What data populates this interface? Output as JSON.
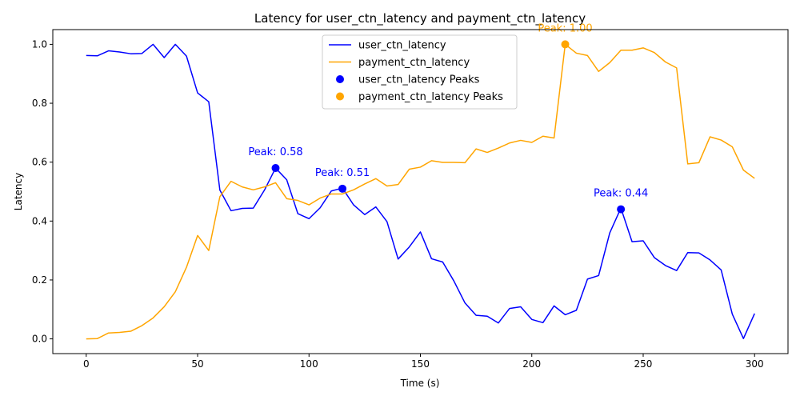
{
  "chart_data": {
    "type": "line",
    "title": "Latency for user_ctn_latency and payment_ctn_latency",
    "xlabel": "Time (s)",
    "ylabel": "Latency",
    "xlim": [
      -15,
      315
    ],
    "ylim": [
      -0.05,
      1.05
    ],
    "xticks": [
      0,
      50,
      100,
      150,
      200,
      250,
      300
    ],
    "yticks": [
      0.0,
      0.2,
      0.4,
      0.6,
      0.8,
      1.0
    ],
    "grid": false,
    "legend_position": "top-center",
    "x": [
      0,
      5,
      10,
      15,
      20,
      25,
      30,
      35,
      40,
      45,
      50,
      55,
      60,
      65,
      70,
      75,
      80,
      85,
      90,
      95,
      100,
      105,
      110,
      115,
      120,
      125,
      130,
      135,
      140,
      145,
      150,
      155,
      160,
      165,
      170,
      175,
      180,
      185,
      190,
      195,
      200,
      205,
      210,
      215,
      220,
      225,
      230,
      235,
      240,
      245,
      250,
      255,
      260,
      265,
      270,
      275,
      280,
      285,
      290,
      295,
      300
    ],
    "series": [
      {
        "name": "user_ctn_latency",
        "color": "#0000ff",
        "values": [
          0.962,
          0.961,
          0.978,
          0.974,
          0.968,
          0.969,
          1.0,
          0.955,
          1.0,
          0.96,
          0.835,
          0.805,
          0.505,
          0.435,
          0.443,
          0.444,
          0.505,
          0.58,
          0.54,
          0.425,
          0.408,
          0.445,
          0.502,
          0.512,
          0.455,
          0.422,
          0.448,
          0.398,
          0.271,
          0.312,
          0.363,
          0.272,
          0.261,
          0.197,
          0.122,
          0.08,
          0.077,
          0.054,
          0.103,
          0.109,
          0.066,
          0.055,
          0.112,
          0.082,
          0.097,
          0.203,
          0.215,
          0.36,
          0.444,
          0.33,
          0.333,
          0.276,
          0.249,
          0.232,
          0.293,
          0.292,
          0.268,
          0.234,
          0.084,
          0.001,
          0.086
        ]
      },
      {
        "name": "payment_ctn_latency",
        "color": "#ffa500",
        "values": [
          0.0,
          0.001,
          0.02,
          0.022,
          0.026,
          0.045,
          0.071,
          0.109,
          0.16,
          0.243,
          0.351,
          0.3,
          0.483,
          0.535,
          0.516,
          0.506,
          0.516,
          0.53,
          0.476,
          0.47,
          0.455,
          0.478,
          0.492,
          0.492,
          0.506,
          0.526,
          0.544,
          0.519,
          0.524,
          0.576,
          0.583,
          0.605,
          0.599,
          0.599,
          0.598,
          0.645,
          0.633,
          0.648,
          0.665,
          0.674,
          0.667,
          0.688,
          0.682,
          1.0,
          0.97,
          0.962,
          0.908,
          0.938,
          0.98,
          0.98,
          0.988,
          0.972,
          0.94,
          0.92,
          0.594,
          0.598,
          0.686,
          0.675,
          0.652,
          0.573,
          0.545
        ]
      }
    ],
    "peaks": [
      {
        "series": "user_ctn_latency",
        "x": 85,
        "y": 0.58,
        "label": "Peak: 0.58",
        "color": "#0000ff"
      },
      {
        "series": "user_ctn_latency",
        "x": 115,
        "y": 0.51,
        "label": "Peak: 0.51",
        "color": "#0000ff"
      },
      {
        "series": "user_ctn_latency",
        "x": 240,
        "y": 0.44,
        "label": "Peak: 0.44",
        "color": "#0000ff"
      },
      {
        "series": "payment_ctn_latency",
        "x": 215,
        "y": 1.0,
        "label": "Peak: 1.00",
        "color": "#ffa500"
      }
    ],
    "legend": [
      {
        "label": "user_ctn_latency",
        "kind": "line",
        "color": "#0000ff"
      },
      {
        "label": "payment_ctn_latency",
        "kind": "line",
        "color": "#ffa500"
      },
      {
        "label": "user_ctn_latency Peaks",
        "kind": "dot",
        "color": "#0000ff"
      },
      {
        "label": "payment_ctn_latency Peaks",
        "kind": "dot",
        "color": "#ffa500"
      }
    ]
  }
}
